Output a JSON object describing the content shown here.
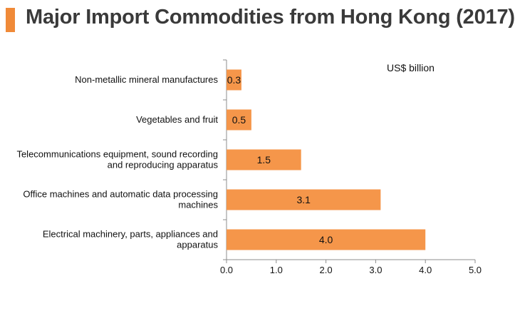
{
  "title": "Major Import Commodities from Hong Kong (2017)",
  "unit_label": "US$ billion",
  "colors": {
    "accent": "#f08a38",
    "bar": "#f5964a",
    "axis": "#8c8c8c",
    "title": "#3a3a3a"
  },
  "chart_data": {
    "type": "bar",
    "orientation": "horizontal",
    "title": "Major Import Commodities from Hong Kong (2017)",
    "categories": [
      [
        "Non-metallic mineral manufactures"
      ],
      [
        "Vegetables and fruit"
      ],
      [
        "Telecommunications equipment, sound recording",
        "and reproducing apparatus"
      ],
      [
        "Office machines and automatic data processing",
        "machines"
      ],
      [
        "Electrical machinery, parts, appliances and",
        "apparatus"
      ]
    ],
    "values": [
      0.3,
      0.5,
      1.5,
      3.1,
      4.0
    ],
    "value_labels": [
      "0.3",
      "0.5",
      "1.5",
      "3.1",
      "4.0"
    ],
    "xlim": [
      0,
      5
    ],
    "xticks": [
      "0.0",
      "1.0",
      "2.0",
      "3.0",
      "4.0",
      "5.0"
    ],
    "grid": false,
    "legend": "none"
  }
}
